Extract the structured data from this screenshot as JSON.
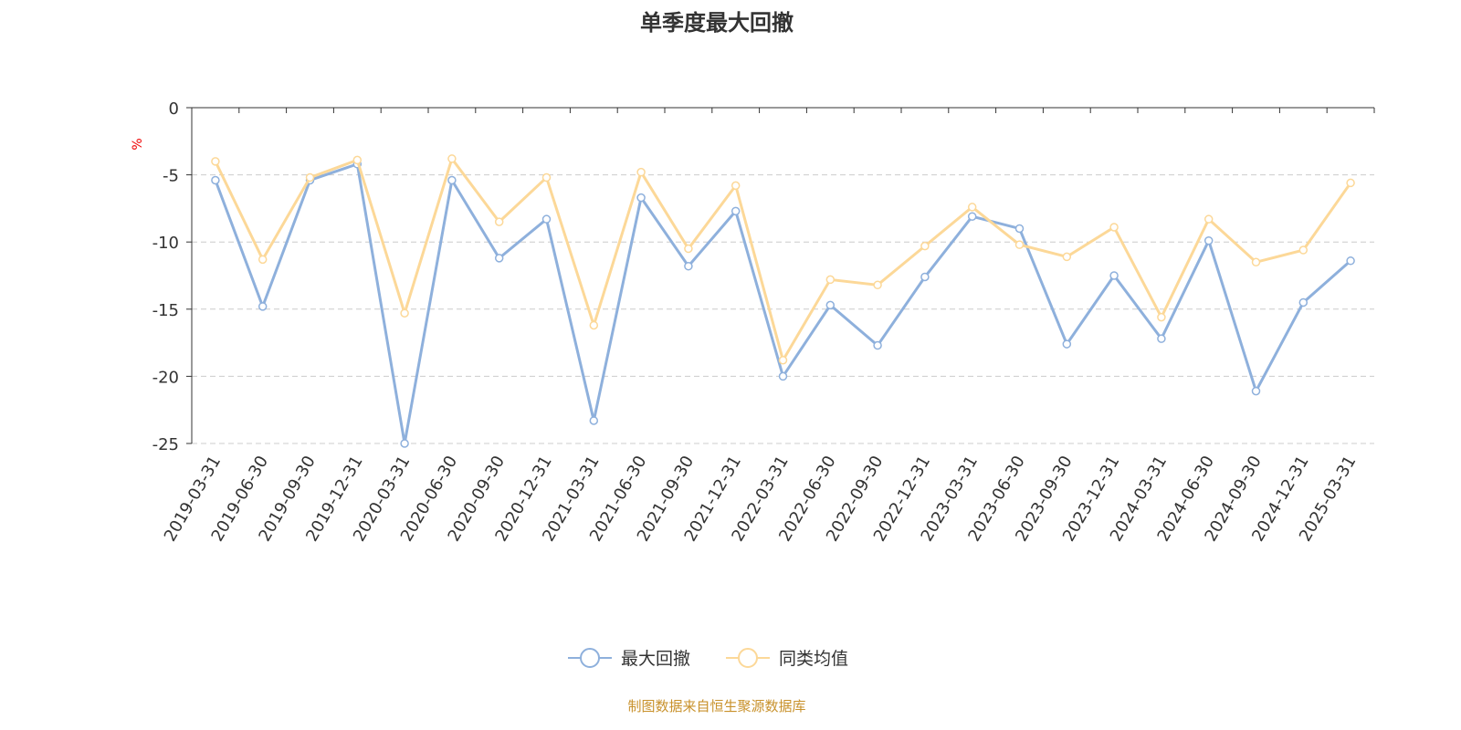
{
  "chart_data": {
    "type": "line",
    "title": "单季度最大回撤",
    "ylabel": "%",
    "ylim": [
      -25,
      0
    ],
    "yticks": [
      0,
      -5,
      -10,
      -15,
      -20,
      -25
    ],
    "grid": true,
    "legend_position": "bottom-center",
    "categories": [
      "2019-03-31",
      "2019-06-30",
      "2019-09-30",
      "2019-12-31",
      "2020-03-31",
      "2020-06-30",
      "2020-09-30",
      "2020-12-31",
      "2021-03-31",
      "2021-06-30",
      "2021-09-30",
      "2021-12-31",
      "2022-03-31",
      "2022-06-30",
      "2022-09-30",
      "2022-12-31",
      "2023-03-31",
      "2023-06-30",
      "2023-09-30",
      "2023-12-31",
      "2024-03-31",
      "2024-06-30",
      "2024-09-30",
      "2024-12-31",
      "2025-03-31"
    ],
    "series": [
      {
        "name": "最大回撤",
        "color": "#8eb0dc",
        "values": [
          -5.4,
          -14.8,
          -5.4,
          -4.2,
          -25.0,
          -5.4,
          -11.2,
          -8.3,
          -23.3,
          -6.7,
          -11.8,
          -7.7,
          -20.0,
          -14.7,
          -17.7,
          -12.6,
          -8.1,
          -9.0,
          -17.6,
          -12.5,
          -17.2,
          -9.9,
          -21.1,
          -14.5,
          -11.4
        ]
      },
      {
        "name": "同类均值",
        "color": "#fcd898",
        "values": [
          -4.0,
          -11.3,
          -5.2,
          -3.9,
          -15.3,
          -3.8,
          -8.5,
          -5.2,
          -16.2,
          -4.8,
          -10.5,
          -5.8,
          -18.8,
          -12.8,
          -13.2,
          -10.3,
          -7.4,
          -10.2,
          -11.1,
          -8.9,
          -15.6,
          -8.3,
          -11.5,
          -10.6,
          -5.6
        ]
      }
    ],
    "source": "制图数据来自恒生聚源数据库"
  }
}
